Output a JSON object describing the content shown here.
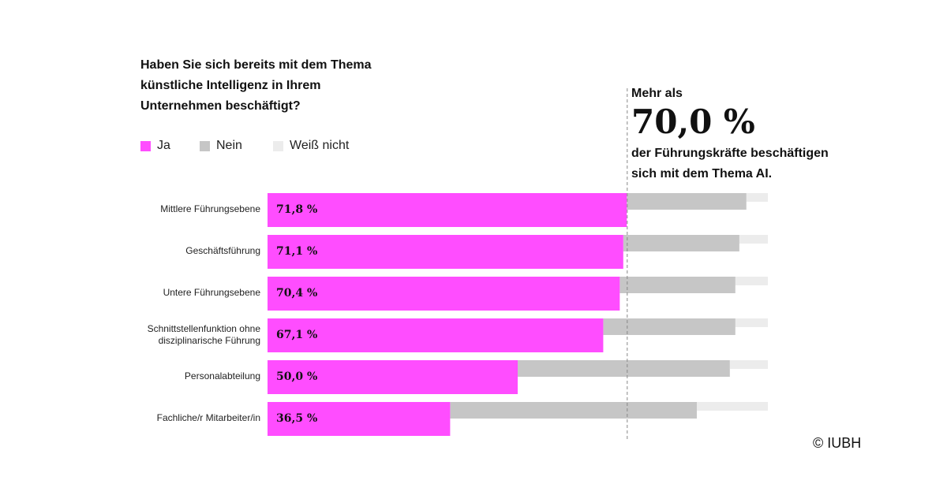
{
  "chart_data": {
    "type": "bar",
    "stacked": true,
    "orientation": "horizontal",
    "title": "Haben Sie sich bereits mit dem Thema künstliche Intelligenz in Ihrem Unternehmen beschäftigt?",
    "categories": [
      "Mittlere Führungsebene",
      "Geschäftsführung",
      "Untere Führungsebene",
      "Schnittstellenfunktion ohne disziplinarische Führung",
      "Personalabteilung",
      "Fachliche/r Mitarbeiter/in"
    ],
    "series": [
      {
        "name": "Ja",
        "color": "#ff4dff",
        "values": [
          71.8,
          71.1,
          70.4,
          67.1,
          50.0,
          36.5
        ]
      },
      {
        "name": "Nein",
        "color": "#c6c6c6",
        "values": [
          23.9,
          23.2,
          23.1,
          26.4,
          42.4,
          49.3
        ]
      },
      {
        "name": "Weiß nicht",
        "color": "#ececec",
        "values": [
          4.3,
          5.7,
          6.5,
          6.5,
          7.6,
          14.2
        ]
      }
    ],
    "data_labels": [
      "71,8 %",
      "71,1 %",
      "70,4 %",
      "67,1 %",
      "50,0 %",
      "36,5 %"
    ],
    "xlim": [
      0,
      100
    ],
    "reference_line": 70.0,
    "legend_position": "top-left"
  },
  "annotation": {
    "line1": "Mehr als",
    "big": "70,0 %",
    "line3": "der Führungskräfte beschäftigen",
    "line4": "sich mit dem Thema AI."
  },
  "copyright": "© IUBH"
}
